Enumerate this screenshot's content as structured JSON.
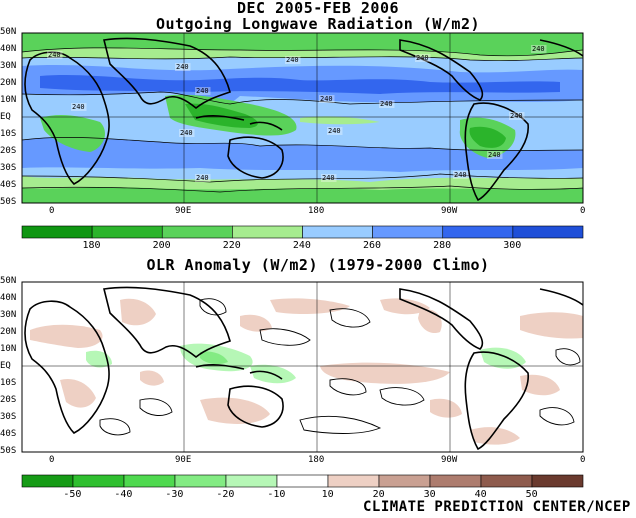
{
  "top_panel": {
    "title_line1": "DEC 2005-FEB 2006",
    "title_line2": "Outgoing Longwave Radiation (W/m2)",
    "lat_labels": [
      "50N",
      "40N",
      "30N",
      "20N",
      "10N",
      "EQ",
      "10S",
      "20S",
      "30S",
      "40S",
      "50S"
    ],
    "lon_labels": [
      "0",
      "90E",
      "180",
      "90W",
      "0"
    ],
    "contour_labels": [
      "240",
      "240",
      "240",
      "240",
      "240",
      "240",
      "240",
      "240",
      "240",
      "240",
      "240",
      "240",
      "240",
      "240",
      "240",
      "240"
    ],
    "colorbar": {
      "labels": [
        "180",
        "200",
        "220",
        "240",
        "260",
        "280",
        "300"
      ],
      "colors": [
        "#0f9612",
        "#2bb42b",
        "#5ad25a",
        "#a6ec8f",
        "#99ccff",
        "#6699ff",
        "#3366ee",
        "#1f4fd8"
      ]
    }
  },
  "bottom_panel": {
    "title": "OLR Anomaly (W/m2) (1979-2000 Climo)",
    "lat_labels": [
      "50N",
      "40N",
      "30N",
      "20N",
      "10N",
      "EQ",
      "10S",
      "20S",
      "30S",
      "40S",
      "50S"
    ],
    "lon_labels": [
      "0",
      "90E",
      "180",
      "90W",
      "0"
    ],
    "colorbar": {
      "labels": [
        "-50",
        "-40",
        "-30",
        "-20",
        "-10",
        "10",
        "20",
        "30",
        "40",
        "50"
      ],
      "colors": [
        "#169b16",
        "#2fbf2f",
        "#4fd94f",
        "#83eb83",
        "#b6f7b6",
        "#ffffff",
        "#eed0c4",
        "#c9a092",
        "#ad7c6e",
        "#8e5b4d",
        "#6a3a2e"
      ]
    }
  },
  "credit": "CLIMATE PREDICTION CENTER/NCEP"
}
